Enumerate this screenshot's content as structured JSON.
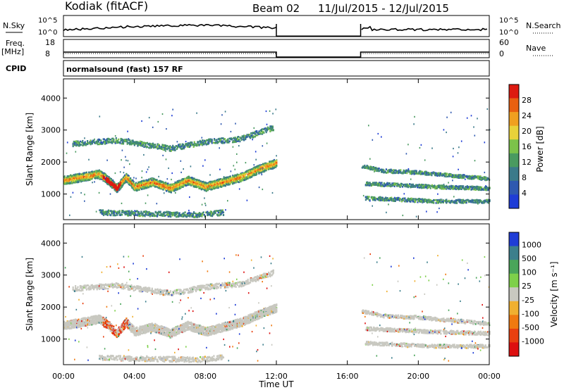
{
  "header": {
    "station": "Kodiak (fitACF)",
    "beam": "Beam 02",
    "date_range": "11/Jul/2015 - 12/Jul/2015"
  },
  "strip": {
    "nsky_label": "N.Sky",
    "nsky_ticks": [
      "10^5",
      "10^0"
    ],
    "nsearch_label": "N.Search",
    "nsearch_ticks": [
      "10^5",
      "10^0"
    ],
    "freq_label": "Freq.",
    "freq_unit": "[MHz]",
    "freq_ticks": [
      "18",
      "8"
    ],
    "nave_label": "Nave",
    "nave_ticks": [
      "60",
      "0"
    ],
    "cpid_label": "CPID",
    "cpid_text": "normalsound (fast) 157 RF"
  },
  "chart_data": [
    {
      "type": "heatmap",
      "panel": "power",
      "ylabel": "Slant Range [km]",
      "xlabel": "Time UT",
      "xlim": [
        0,
        24
      ],
      "ylim": [
        200,
        4600
      ],
      "x_ticks": [
        "00:00",
        "04:00",
        "08:00",
        "12:00",
        "16:00",
        "20:00",
        "00:00"
      ],
      "y_ticks": [
        "1000",
        "2000",
        "3000",
        "4000"
      ],
      "data_gap_hours": [
        12.0,
        16.75
      ],
      "colorbar": {
        "label": "Power [dB]",
        "ticks": [
          "4",
          "8",
          "12",
          "16",
          "20",
          "24",
          "28"
        ],
        "range": [
          0,
          30
        ],
        "colors": [
          "#1f3dd6",
          "#2f59b0",
          "#3b7a8a",
          "#4a9a60",
          "#7cc24a",
          "#e8d23a",
          "#f0a020",
          "#e86010",
          "#dd1a10"
        ]
      },
      "features": [
        {
          "name": "main-backscatter-band",
          "t": [
            0,
            1,
            2,
            2.5,
            3,
            3.5,
            4,
            5,
            6,
            7,
            8,
            9,
            10,
            11,
            12
          ],
          "range_km": [
            1450,
            1550,
            1650,
            1450,
            1200,
            1550,
            1250,
            1400,
            1200,
            1450,
            1250,
            1400,
            1550,
            1800,
            2000
          ]
        },
        {
          "name": "upper-scatter",
          "t": [
            0.5,
            3,
            6,
            8,
            10,
            11.8
          ],
          "range_km": [
            2600,
            2700,
            2450,
            2650,
            2750,
            3100
          ]
        },
        {
          "name": "near-range-scatter",
          "t": [
            2,
            4,
            6,
            7.5,
            9
          ],
          "range_km": [
            450,
            420,
            400,
            380,
            450
          ]
        },
        {
          "name": "evening-band-upper",
          "t": [
            16.8,
            18,
            20,
            22,
            24
          ],
          "range_km": [
            1900,
            1750,
            1700,
            1600,
            1500
          ]
        },
        {
          "name": "evening-band-mid",
          "t": [
            17,
            19,
            21,
            24
          ],
          "range_km": [
            1350,
            1300,
            1250,
            1200
          ]
        },
        {
          "name": "evening-band-lower",
          "t": [
            17,
            19,
            21,
            24
          ],
          "range_km": [
            900,
            850,
            800,
            800
          ]
        }
      ]
    },
    {
      "type": "heatmap",
      "panel": "velocity",
      "ylabel": "Slant Range [km]",
      "xlabel": "Time UT",
      "xlim": [
        0,
        24
      ],
      "ylim": [
        200,
        4600
      ],
      "x_ticks": [
        "00:00",
        "04:00",
        "08:00",
        "12:00",
        "16:00",
        "20:00",
        "00:00"
      ],
      "y_ticks": [
        "1000",
        "2000",
        "3000",
        "4000"
      ],
      "colorbar": {
        "label": "Velocity [m s⁻¹]",
        "ticks": [
          "1000",
          "500",
          "100",
          "25",
          "-25",
          "-100",
          "-500",
          "-1000"
        ],
        "colors": [
          "#1f3dd6",
          "#3c7f8c",
          "#4aa55a",
          "#7ed04a",
          "#c8c8c0",
          "#f0b030",
          "#f07a10",
          "#e84010",
          "#dd1010"
        ]
      }
    }
  ]
}
